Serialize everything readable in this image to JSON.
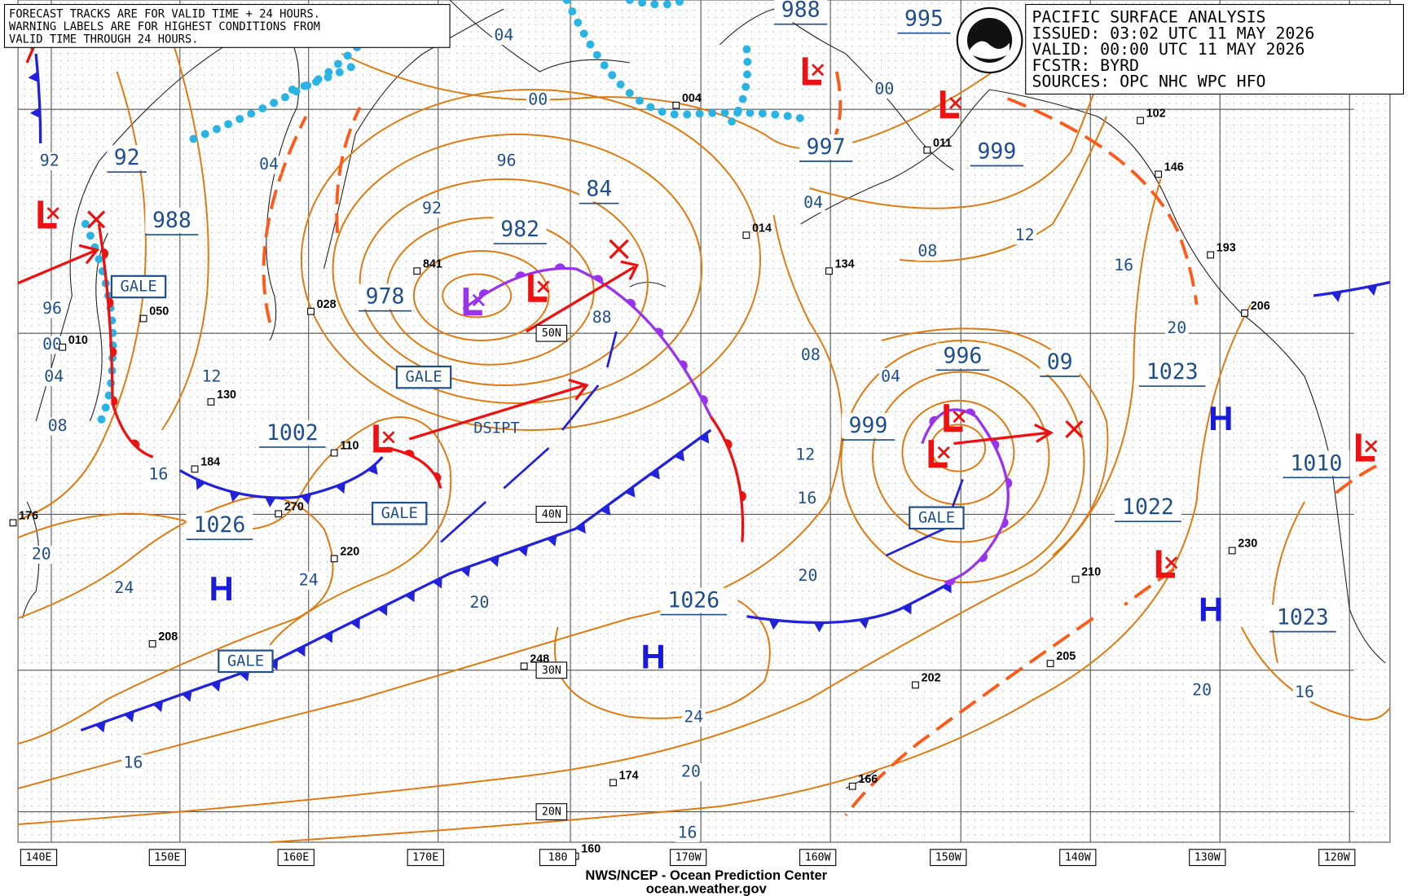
{
  "notice": [
    "FORECAST TRACKS ARE FOR VALID TIME + 24 HOURS.",
    "WARNING LABELS ARE FOR HIGHEST CONDITIONS FROM",
    "VALID TIME THROUGH 24 HOURS."
  ],
  "header": {
    "title": "PACIFIC SURFACE ANALYSIS",
    "issued": "ISSUED: 03:02 UTC 11 MAY 2026",
    "valid": "VALID:  00:00 UTC 11 MAY 2026",
    "forecaster": "FCSTR:  BYRD",
    "sources": "SOURCES: OPC NHC WPC HFO"
  },
  "pressure_centers": [
    "988",
    "995",
    "997",
    "999",
    "92",
    "988",
    "84",
    "982",
    "978",
    "1002",
    "1026",
    "1026",
    "996",
    "999",
    "09",
    "1023",
    "1010",
    "1022",
    "1023"
  ],
  "isobar_labels": [
    "04",
    "00",
    "04",
    "92",
    "96",
    "00",
    "04",
    "08",
    "16",
    "20",
    "24",
    "12",
    "92",
    "96",
    "88",
    "08",
    "12",
    "16",
    "20",
    "20",
    "24",
    "24",
    "20",
    "16",
    "16",
    "04",
    "08",
    "12",
    "16",
    "20",
    "00",
    "04",
    "20",
    "16"
  ],
  "warnings": [
    "GALE",
    "GALE",
    "GALE",
    "GALE",
    "GALE"
  ],
  "status": "DSIPT",
  "highs": [
    "H",
    "H",
    "H",
    "H"
  ],
  "stations": [
    "050",
    "010",
    "028",
    "841",
    "130",
    "184",
    "110",
    "270",
    "220",
    "208",
    "248",
    "174",
    "160",
    "014",
    "134",
    "004",
    "011",
    "102",
    "146",
    "193",
    "206",
    "210",
    "205",
    "202",
    "230",
    "166",
    "176"
  ],
  "longitudes": [
    "140E",
    "150E",
    "160E",
    "170E",
    "180",
    "170W",
    "160W",
    "150W",
    "140W",
    "130W",
    "120W"
  ],
  "latitudes": [
    "50N",
    "40N",
    "30N",
    "20N"
  ],
  "footer": [
    "NWS/NCEP - Ocean Prediction Center",
    "ocean.weather.gov"
  ]
}
